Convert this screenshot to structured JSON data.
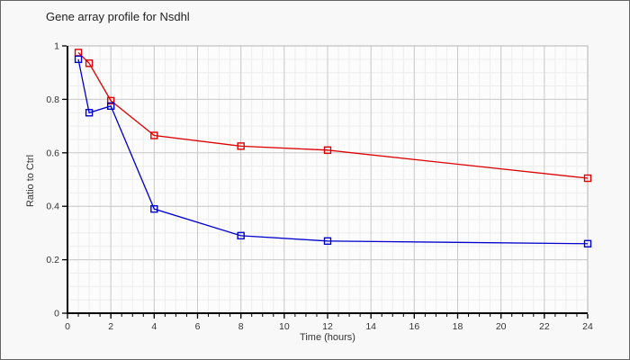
{
  "window": {
    "background": "#f8f8f8",
    "border_color": "#666666"
  },
  "chart_data": {
    "type": "line",
    "title": "Gene array profile for Nsdhl",
    "xlabel": "Time (hours)",
    "ylabel": "Ratio to Ctrl",
    "x": [
      0.5,
      1,
      2,
      4,
      8,
      12,
      24
    ],
    "series": [
      {
        "id": "red",
        "color": "#dd0000",
        "values": [
          0.975,
          0.935,
          0.795,
          0.665,
          0.625,
          0.61,
          0.505
        ]
      },
      {
        "id": "blue",
        "color": "#0000cc",
        "values": [
          0.95,
          0.75,
          0.775,
          0.39,
          0.29,
          0.27,
          0.26
        ]
      }
    ],
    "xlim": [
      0,
      24
    ],
    "ylim": [
      0,
      1
    ],
    "x_major_ticks": [
      0,
      2,
      4,
      6,
      8,
      10,
      12,
      14,
      16,
      18,
      20,
      22,
      24
    ],
    "y_major_ticks": [
      0,
      0.2,
      0.4,
      0.6,
      0.8,
      1
    ],
    "x_minor_step": 0.5,
    "y_minor_step": 0.05,
    "grid": true,
    "legend": "none",
    "marker": "open-square",
    "styles": {
      "plot_background": "#fcfcfc",
      "minor_grid_color": "#ededed",
      "major_grid_color": "#c9c9c9",
      "plot_border_color": "#b3b3b3",
      "axis_color": "#000000",
      "tick_label_color": "#333333"
    }
  }
}
